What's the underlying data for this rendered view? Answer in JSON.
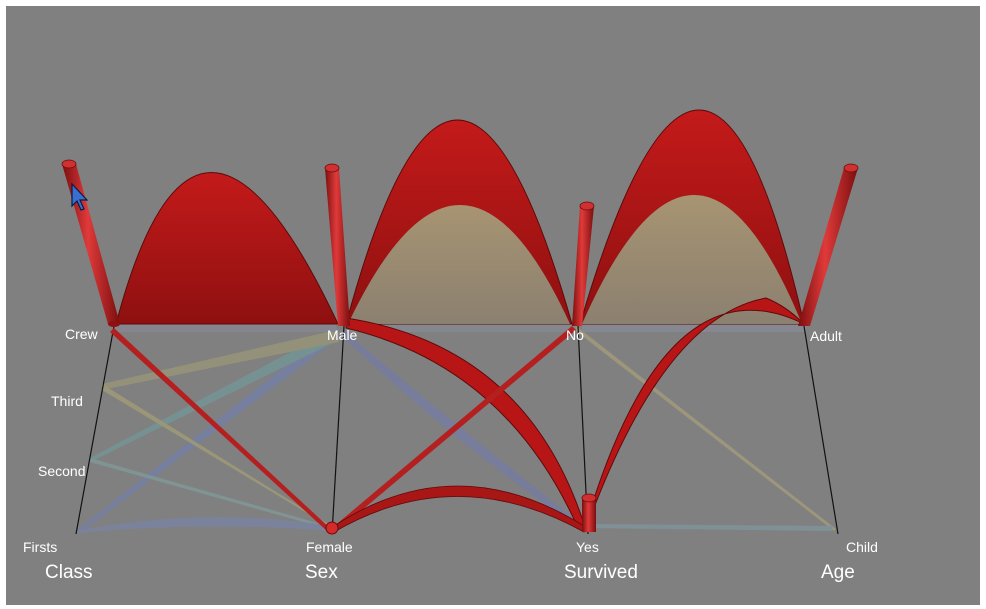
{
  "chart_data": {
    "type": "parallel-sets-3d",
    "axes": [
      {
        "name": "Class",
        "categories": [
          "Crew",
          "Third",
          "Second",
          "Firsts"
        ]
      },
      {
        "name": "Sex",
        "categories": [
          "Male",
          "Female"
        ]
      },
      {
        "name": "Survived",
        "categories": [
          "No",
          "Yes"
        ]
      },
      {
        "name": "Age",
        "categories": [
          "Adult",
          "Child"
        ]
      }
    ],
    "highlight_color": "#b01818",
    "background": "#808080"
  }
}
